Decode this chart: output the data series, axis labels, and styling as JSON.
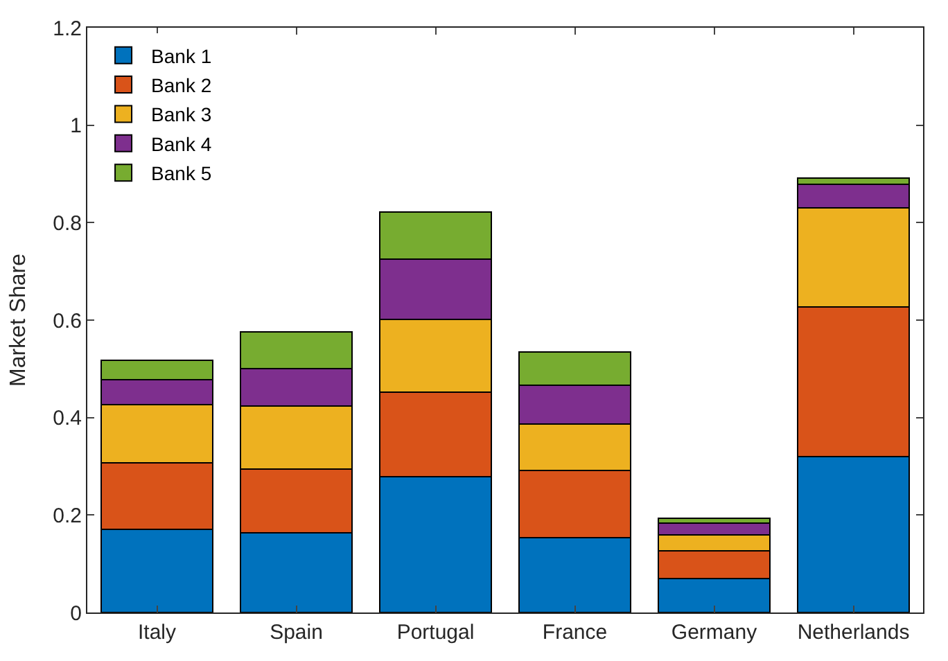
{
  "chart_data": {
    "type": "bar",
    "stacked": true,
    "ylabel": "Market Share",
    "categories": [
      "Italy",
      "Spain",
      "Portugal",
      "France",
      "Germany",
      "Netherlands"
    ],
    "series": [
      {
        "name": "Bank 1",
        "color": "#0072bd",
        "values": [
          0.17,
          0.164,
          0.278,
          0.154,
          0.07,
          0.32
        ]
      },
      {
        "name": "Bank 2",
        "color": "#d95319",
        "values": [
          0.137,
          0.131,
          0.174,
          0.138,
          0.057,
          0.307
        ]
      },
      {
        "name": "Bank 3",
        "color": "#edb120",
        "values": [
          0.12,
          0.129,
          0.149,
          0.095,
          0.032,
          0.204
        ]
      },
      {
        "name": "Bank 4",
        "color": "#7e2f8e",
        "values": [
          0.051,
          0.077,
          0.124,
          0.079,
          0.024,
          0.047
        ]
      },
      {
        "name": "Bank 5",
        "color": "#77ac30",
        "values": [
          0.039,
          0.075,
          0.097,
          0.069,
          0.01,
          0.014
        ]
      }
    ],
    "ylim": [
      0,
      1.2
    ],
    "yticks": [
      0,
      0.2,
      0.4,
      0.6,
      0.8,
      1,
      1.2
    ],
    "legend": "top left"
  }
}
